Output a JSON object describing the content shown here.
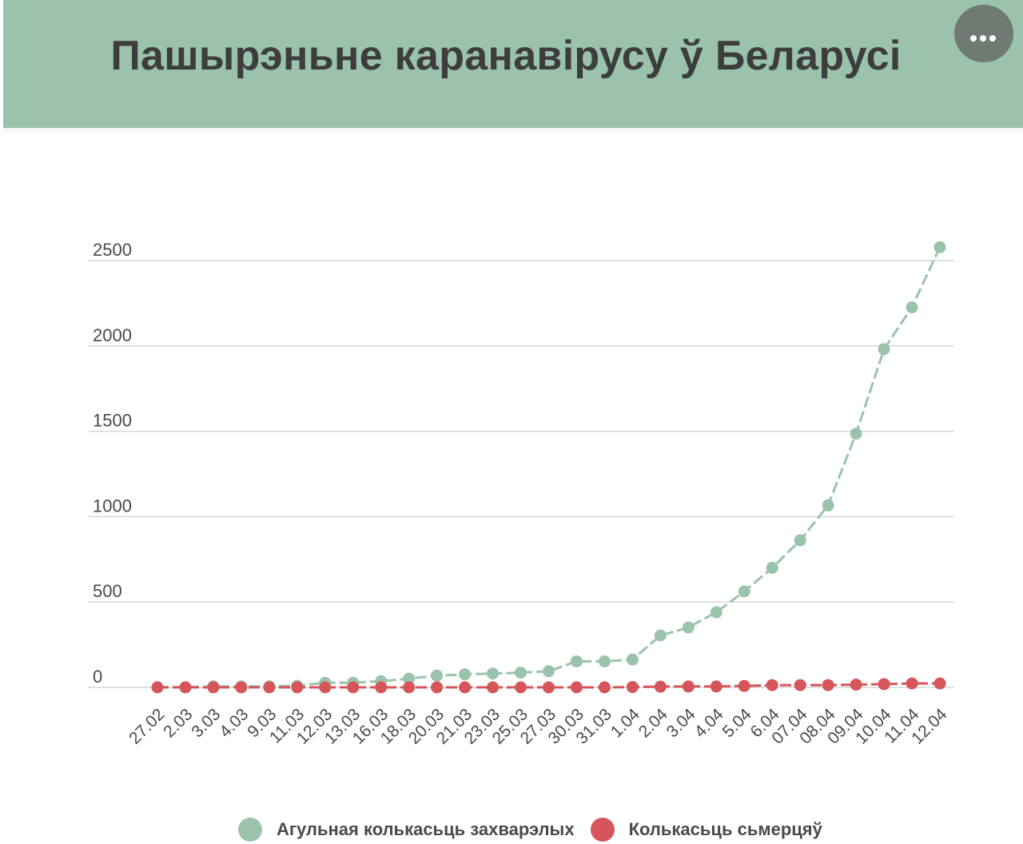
{
  "header": {
    "title": "Пашырэньне каранавірусу ў Беларусі",
    "background": "#9bc3ab",
    "menu_icon": "more-horizontal-icon"
  },
  "chart_data": {
    "type": "line",
    "title": "Пашырэньне каранавірусу ў Беларусі",
    "xlabel": "",
    "ylabel": "",
    "ylim": [
      0,
      2500
    ],
    "yticks": [
      0,
      500,
      1000,
      1500,
      2000,
      2500
    ],
    "grid": true,
    "legend_position": "bottom",
    "categories": [
      "27.02",
      "2.03",
      "3.03",
      "4.03",
      "9.03",
      "11.03",
      "12.03",
      "13.03",
      "16.03",
      "18.03",
      "20.03",
      "21.03",
      "23.03",
      "25.03",
      "27.03",
      "30.03",
      "31.03",
      "1.04",
      "2.04",
      "3.04",
      "4.04",
      "5.04",
      "6.04",
      "07.04",
      "08.04",
      "09.04",
      "10.04",
      "11.04",
      "12.04"
    ],
    "series": [
      {
        "name": "Агульная колькасьць захварэлых",
        "color": "#9bc3ab",
        "values": [
          1,
          1,
          6,
          6,
          6,
          9,
          27,
          27,
          36,
          51,
          69,
          76,
          81,
          86,
          94,
          152,
          152,
          163,
          304,
          351,
          440,
          562,
          700,
          861,
          1066,
          1486,
          1981,
          2226,
          2578
        ]
      },
      {
        "name": "Колькасьць сьмерцяў",
        "color": "#d5555a",
        "values": [
          0,
          0,
          0,
          0,
          0,
          0,
          0,
          0,
          0,
          0,
          0,
          0,
          0,
          0,
          0,
          0,
          0,
          2,
          4,
          5,
          5,
          8,
          13,
          13,
          13,
          16,
          19,
          23,
          23
        ]
      }
    ]
  }
}
